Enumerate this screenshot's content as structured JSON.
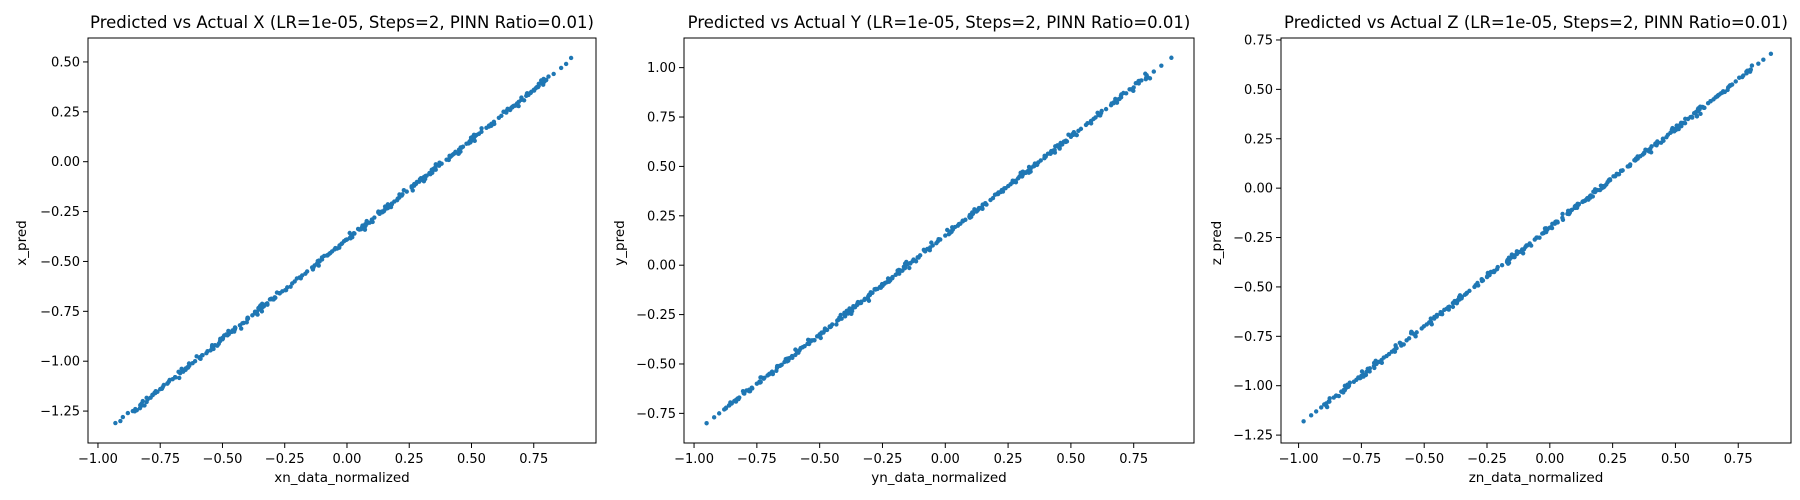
{
  "figure": {
    "background": "#ffffff",
    "marker_color": "#1f77b4"
  },
  "chart_data": [
    {
      "type": "scatter",
      "title": "Predicted vs Actual X (LR=1e-05, Steps=2, PINN Ratio=0.01)",
      "xlabel": "xn_data_normalized",
      "ylabel": "x_pred",
      "xlim": [
        -1.04,
        1.0
      ],
      "ylim": [
        -1.41,
        0.62
      ],
      "xticks": [
        -1.0,
        -0.75,
        -0.5,
        -0.25,
        0.0,
        0.25,
        0.5,
        0.75
      ],
      "xtick_labels": [
        "−1.00",
        "−0.75",
        "−0.50",
        "−0.25",
        "0.00",
        "0.25",
        "0.50",
        "0.75"
      ],
      "yticks": [
        -1.25,
        -1.0,
        -0.75,
        -0.5,
        -0.25,
        0.0,
        0.25,
        0.5
      ],
      "ytick_labels": [
        "−1.25",
        "−1.00",
        "−0.75",
        "−0.50",
        "−0.25",
        "0.00",
        "0.25",
        "0.50"
      ],
      "grid": false,
      "trend": {
        "x_start": -0.93,
        "x_end": 0.9,
        "slope": 1.0,
        "intercept": -0.39
      },
      "x": [
        -0.93,
        -0.91,
        -0.9,
        -0.88,
        -0.86,
        -0.85,
        -0.83,
        -0.82,
        -0.8,
        -0.78,
        -0.77,
        -0.75,
        -0.74,
        -0.72,
        -0.7,
        -0.69,
        -0.67,
        -0.66,
        -0.64,
        -0.62,
        -0.61,
        -0.59,
        -0.58,
        -0.56,
        -0.54,
        -0.53,
        -0.51,
        -0.5,
        -0.48,
        -0.46,
        -0.45,
        -0.43,
        -0.42,
        -0.4,
        -0.38,
        -0.37,
        -0.35,
        -0.34,
        -0.32,
        -0.3,
        -0.29,
        -0.27,
        -0.26,
        -0.24,
        -0.22,
        -0.21,
        -0.19,
        -0.18,
        -0.16,
        -0.14,
        -0.13,
        -0.11,
        -0.1,
        -0.08,
        -0.06,
        -0.05,
        -0.03,
        -0.02,
        0.0,
        0.02,
        0.03,
        0.05,
        0.06,
        0.08,
        0.1,
        0.11,
        0.13,
        0.14,
        0.16,
        0.18,
        0.19,
        0.21,
        0.22,
        0.24,
        0.26,
        0.27,
        0.29,
        0.3,
        0.32,
        0.34,
        0.35,
        0.37,
        0.38,
        0.4,
        0.42,
        0.43,
        0.45,
        0.46,
        0.48,
        0.5,
        0.51,
        0.53,
        0.54,
        0.56,
        0.58,
        0.59,
        0.61,
        0.62,
        0.64,
        0.66,
        0.67,
        0.69,
        0.7,
        0.72,
        0.74,
        0.75,
        0.77,
        0.8,
        0.83,
        0.86,
        0.88,
        0.9
      ],
      "y": [
        -1.31,
        -1.3,
        -1.28,
        -1.26,
        -1.25,
        -1.24,
        -1.22,
        -1.2,
        -1.19,
        -1.17,
        -1.16,
        -1.14,
        -1.13,
        -1.11,
        -1.09,
        -1.08,
        -1.06,
        -1.05,
        -1.03,
        -1.01,
        -1.0,
        -0.98,
        -0.97,
        -0.95,
        -0.93,
        -0.92,
        -0.9,
        -0.89,
        -0.87,
        -0.85,
        -0.84,
        -0.82,
        -0.81,
        -0.79,
        -0.77,
        -0.76,
        -0.74,
        -0.73,
        -0.71,
        -0.69,
        -0.68,
        -0.66,
        -0.65,
        -0.63,
        -0.61,
        -0.6,
        -0.58,
        -0.57,
        -0.55,
        -0.53,
        -0.52,
        -0.5,
        -0.49,
        -0.47,
        -0.45,
        -0.44,
        -0.42,
        -0.41,
        -0.39,
        -0.37,
        -0.36,
        -0.34,
        -0.33,
        -0.31,
        -0.29,
        -0.28,
        -0.26,
        -0.25,
        -0.23,
        -0.21,
        -0.2,
        -0.18,
        -0.17,
        -0.15,
        -0.13,
        -0.12,
        -0.1,
        -0.09,
        -0.07,
        -0.05,
        -0.04,
        -0.02,
        -0.01,
        0.01,
        0.03,
        0.04,
        0.06,
        0.07,
        0.09,
        0.11,
        0.12,
        0.14,
        0.15,
        0.17,
        0.19,
        0.2,
        0.22,
        0.23,
        0.25,
        0.27,
        0.28,
        0.3,
        0.31,
        0.33,
        0.35,
        0.36,
        0.38,
        0.41,
        0.44,
        0.47,
        0.49,
        0.52
      ]
    },
    {
      "type": "scatter",
      "title": "Predicted vs Actual Y (LR=1e-05, Steps=2, PINN Ratio=0.01)",
      "xlabel": "yn_data_normalized",
      "ylabel": "y_pred",
      "xlim": [
        -1.04,
        0.99
      ],
      "ylim": [
        -0.9,
        1.15
      ],
      "xticks": [
        -1.0,
        -0.75,
        -0.5,
        -0.25,
        0.0,
        0.25,
        0.5,
        0.75
      ],
      "xtick_labels": [
        "−1.00",
        "−0.75",
        "−0.50",
        "−0.25",
        "0.00",
        "0.25",
        "0.50",
        "0.75"
      ],
      "yticks": [
        -0.75,
        -0.5,
        -0.25,
        0.0,
        0.25,
        0.5,
        0.75,
        1.0
      ],
      "ytick_labels": [
        "−0.75",
        "−0.50",
        "−0.25",
        "0.00",
        "0.25",
        "0.50",
        "0.75",
        "1.00"
      ],
      "grid": false,
      "trend": {
        "x_start": -0.95,
        "x_end": 0.9,
        "slope": 1.0,
        "intercept": 0.15
      },
      "x": [
        -0.95,
        -0.92,
        -0.9,
        -0.88,
        -0.86,
        -0.85,
        -0.83,
        -0.82,
        -0.8,
        -0.78,
        -0.77,
        -0.75,
        -0.74,
        -0.72,
        -0.7,
        -0.69,
        -0.67,
        -0.66,
        -0.64,
        -0.62,
        -0.61,
        -0.59,
        -0.58,
        -0.56,
        -0.54,
        -0.53,
        -0.51,
        -0.5,
        -0.48,
        -0.46,
        -0.45,
        -0.43,
        -0.42,
        -0.4,
        -0.38,
        -0.37,
        -0.35,
        -0.34,
        -0.32,
        -0.3,
        -0.29,
        -0.27,
        -0.26,
        -0.24,
        -0.22,
        -0.21,
        -0.19,
        -0.18,
        -0.16,
        -0.14,
        -0.13,
        -0.11,
        -0.1,
        -0.08,
        -0.06,
        -0.05,
        -0.03,
        -0.02,
        0.0,
        0.02,
        0.03,
        0.05,
        0.06,
        0.08,
        0.1,
        0.11,
        0.13,
        0.14,
        0.16,
        0.18,
        0.19,
        0.21,
        0.22,
        0.24,
        0.26,
        0.27,
        0.29,
        0.3,
        0.32,
        0.34,
        0.35,
        0.37,
        0.38,
        0.4,
        0.42,
        0.43,
        0.45,
        0.46,
        0.48,
        0.5,
        0.51,
        0.53,
        0.54,
        0.56,
        0.58,
        0.59,
        0.61,
        0.62,
        0.64,
        0.66,
        0.67,
        0.69,
        0.7,
        0.72,
        0.74,
        0.75,
        0.77,
        0.8,
        0.83,
        0.86,
        0.9
      ],
      "y": [
        -0.8,
        -0.77,
        -0.75,
        -0.73,
        -0.71,
        -0.7,
        -0.68,
        -0.67,
        -0.65,
        -0.63,
        -0.62,
        -0.6,
        -0.59,
        -0.57,
        -0.55,
        -0.54,
        -0.52,
        -0.51,
        -0.49,
        -0.47,
        -0.46,
        -0.44,
        -0.43,
        -0.41,
        -0.39,
        -0.38,
        -0.36,
        -0.35,
        -0.33,
        -0.31,
        -0.3,
        -0.28,
        -0.27,
        -0.25,
        -0.23,
        -0.22,
        -0.2,
        -0.19,
        -0.17,
        -0.15,
        -0.14,
        -0.12,
        -0.11,
        -0.09,
        -0.07,
        -0.06,
        -0.04,
        -0.03,
        -0.01,
        0.01,
        0.02,
        0.04,
        0.05,
        0.07,
        0.09,
        0.1,
        0.12,
        0.13,
        0.15,
        0.17,
        0.18,
        0.2,
        0.21,
        0.23,
        0.25,
        0.26,
        0.28,
        0.29,
        0.31,
        0.33,
        0.34,
        0.36,
        0.37,
        0.39,
        0.41,
        0.42,
        0.44,
        0.45,
        0.47,
        0.49,
        0.5,
        0.52,
        0.53,
        0.55,
        0.57,
        0.58,
        0.6,
        0.61,
        0.63,
        0.65,
        0.66,
        0.68,
        0.69,
        0.71,
        0.73,
        0.74,
        0.76,
        0.77,
        0.79,
        0.81,
        0.82,
        0.84,
        0.85,
        0.87,
        0.89,
        0.9,
        0.92,
        0.95,
        0.98,
        1.01,
        1.05
      ]
    },
    {
      "type": "scatter",
      "title": "Predicted vs Actual Z (LR=1e-05, Steps=2, PINN Ratio=0.01)",
      "xlabel": "zn_data_normalized",
      "ylabel": "z_pred",
      "xlim": [
        -1.07,
        0.96
      ],
      "ylim": [
        -1.29,
        0.76
      ],
      "xticks": [
        -1.0,
        -0.75,
        -0.5,
        -0.25,
        0.0,
        0.25,
        0.5,
        0.75
      ],
      "xtick_labels": [
        "−1.00",
        "−0.75",
        "−0.50",
        "−0.25",
        "0.00",
        "0.25",
        "0.50",
        "0.75"
      ],
      "yticks": [
        -1.25,
        -1.0,
        -0.75,
        -0.5,
        -0.25,
        0.0,
        0.25,
        0.5,
        0.75
      ],
      "ytick_labels": [
        "−1.25",
        "−1.00",
        "−0.75",
        "−0.50",
        "−0.25",
        "0.00",
        "0.25",
        "0.50",
        "0.75"
      ],
      "grid": false,
      "trend": {
        "x_start": -0.98,
        "x_end": 0.88,
        "slope": 1.0,
        "intercept": -0.2
      },
      "x": [
        -0.98,
        -0.95,
        -0.93,
        -0.91,
        -0.89,
        -0.88,
        -0.86,
        -0.85,
        -0.83,
        -0.81,
        -0.8,
        -0.78,
        -0.77,
        -0.75,
        -0.73,
        -0.72,
        -0.7,
        -0.69,
        -0.67,
        -0.65,
        -0.64,
        -0.62,
        -0.61,
        -0.59,
        -0.57,
        -0.56,
        -0.54,
        -0.53,
        -0.51,
        -0.49,
        -0.48,
        -0.46,
        -0.45,
        -0.43,
        -0.41,
        -0.4,
        -0.38,
        -0.37,
        -0.35,
        -0.33,
        -0.32,
        -0.3,
        -0.29,
        -0.27,
        -0.25,
        -0.24,
        -0.22,
        -0.21,
        -0.19,
        -0.17,
        -0.16,
        -0.14,
        -0.13,
        -0.11,
        -0.09,
        -0.08,
        -0.06,
        -0.05,
        -0.03,
        -0.01,
        0.0,
        0.02,
        0.03,
        0.05,
        0.07,
        0.08,
        0.1,
        0.11,
        0.13,
        0.15,
        0.16,
        0.18,
        0.19,
        0.21,
        0.23,
        0.24,
        0.26,
        0.27,
        0.29,
        0.31,
        0.32,
        0.34,
        0.35,
        0.37,
        0.39,
        0.4,
        0.42,
        0.43,
        0.45,
        0.47,
        0.48,
        0.5,
        0.51,
        0.53,
        0.55,
        0.56,
        0.58,
        0.59,
        0.61,
        0.63,
        0.64,
        0.66,
        0.67,
        0.69,
        0.71,
        0.72,
        0.74,
        0.77,
        0.8,
        0.83,
        0.85,
        0.88
      ],
      "y": [
        -1.18,
        -1.15,
        -1.13,
        -1.11,
        -1.09,
        -1.08,
        -1.06,
        -1.05,
        -1.03,
        -1.01,
        -1.0,
        -0.98,
        -0.97,
        -0.95,
        -0.93,
        -0.92,
        -0.9,
        -0.89,
        -0.87,
        -0.85,
        -0.84,
        -0.82,
        -0.81,
        -0.79,
        -0.77,
        -0.76,
        -0.74,
        -0.73,
        -0.71,
        -0.69,
        -0.68,
        -0.66,
        -0.65,
        -0.63,
        -0.61,
        -0.6,
        -0.58,
        -0.57,
        -0.55,
        -0.53,
        -0.52,
        -0.5,
        -0.49,
        -0.47,
        -0.45,
        -0.44,
        -0.42,
        -0.41,
        -0.39,
        -0.37,
        -0.36,
        -0.34,
        -0.33,
        -0.31,
        -0.29,
        -0.28,
        -0.26,
        -0.25,
        -0.23,
        -0.21,
        -0.2,
        -0.18,
        -0.17,
        -0.15,
        -0.13,
        -0.12,
        -0.1,
        -0.09,
        -0.07,
        -0.05,
        -0.04,
        -0.02,
        -0.01,
        0.01,
        0.03,
        0.04,
        0.06,
        0.07,
        0.09,
        0.11,
        0.12,
        0.14,
        0.15,
        0.17,
        0.19,
        0.2,
        0.22,
        0.23,
        0.25,
        0.27,
        0.28,
        0.3,
        0.31,
        0.33,
        0.35,
        0.36,
        0.38,
        0.39,
        0.41,
        0.43,
        0.44,
        0.46,
        0.47,
        0.49,
        0.51,
        0.52,
        0.54,
        0.57,
        0.6,
        0.63,
        0.65,
        0.68
      ]
    }
  ]
}
